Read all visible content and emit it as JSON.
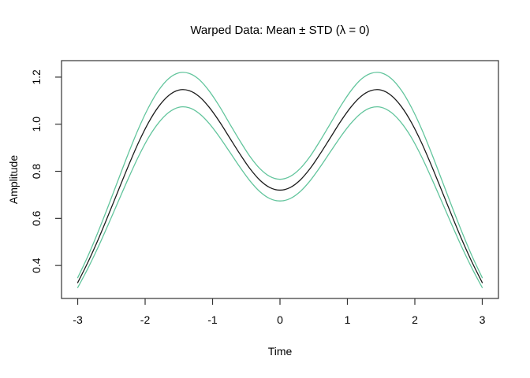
{
  "chart_data": {
    "type": "line",
    "title": "Warped Data: Mean ± STD (λ = 0)",
    "xlabel": "Time",
    "ylabel": "Amplitude",
    "xlim": [
      -3.24,
      3.24
    ],
    "ylim": [
      0.26,
      1.27
    ],
    "grid": false,
    "legend_position": "none",
    "x_ticks": [
      -3,
      -2,
      -1,
      0,
      1,
      2,
      3
    ],
    "x_tick_labels": [
      "-3",
      "-2",
      "-1",
      "0",
      "1",
      "2",
      "3"
    ],
    "y_ticks": [
      0.4,
      0.6,
      0.8,
      1.0,
      1.2
    ],
    "y_tick_labels": [
      "0.4",
      "0.6",
      "0.8",
      "1.0",
      "1.2"
    ],
    "x": [
      -3,
      -2.85,
      -2.7,
      -2.55,
      -2.4,
      -2.25,
      -2.1,
      -1.95,
      -1.8,
      -1.65,
      -1.5,
      -1.35,
      -1.2,
      -1.05,
      -0.9,
      -0.75,
      -0.6,
      -0.45,
      -0.3,
      -0.15,
      0,
      0.15,
      0.3,
      0.45,
      0.6,
      0.75,
      0.9,
      1.05,
      1.2,
      1.35,
      1.5,
      1.65,
      1.8,
      1.95,
      2.1,
      2.25,
      2.4,
      2.55,
      2.7,
      2.85,
      3
    ],
    "series": [
      {
        "name": "mean-plus-std",
        "color": "#63c59d",
        "values": [
          0.348,
          0.439,
          0.541,
          0.65,
          0.763,
          0.875,
          0.98,
          1.071,
          1.144,
          1.194,
          1.218,
          1.216,
          1.19,
          1.141,
          1.077,
          1.004,
          0.932,
          0.865,
          0.812,
          0.778,
          0.766,
          0.778,
          0.812,
          0.865,
          0.932,
          1.004,
          1.077,
          1.141,
          1.19,
          1.216,
          1.218,
          1.194,
          1.144,
          1.071,
          0.98,
          0.875,
          0.763,
          0.65,
          0.541,
          0.439,
          0.348
        ]
      },
      {
        "name": "mean-minus-std",
        "color": "#63c59d",
        "values": [
          0.306,
          0.387,
          0.476,
          0.572,
          0.671,
          0.769,
          0.862,
          0.943,
          1.006,
          1.05,
          1.072,
          1.07,
          1.046,
          1.003,
          0.947,
          0.884,
          0.82,
          0.761,
          0.714,
          0.684,
          0.674,
          0.684,
          0.714,
          0.761,
          0.82,
          0.884,
          0.947,
          1.003,
          1.046,
          1.07,
          1.072,
          1.05,
          1.006,
          0.943,
          0.862,
          0.769,
          0.671,
          0.572,
          0.476,
          0.387,
          0.306
        ]
      },
      {
        "name": "mean",
        "color": "#1c1c1c",
        "values": [
          0.327,
          0.413,
          0.508,
          0.611,
          0.717,
          0.822,
          0.921,
          1.007,
          1.075,
          1.122,
          1.145,
          1.143,
          1.118,
          1.072,
          1.012,
          0.944,
          0.876,
          0.813,
          0.763,
          0.731,
          0.72,
          0.731,
          0.763,
          0.813,
          0.876,
          0.944,
          1.012,
          1.072,
          1.118,
          1.143,
          1.145,
          1.122,
          1.075,
          1.007,
          0.921,
          0.822,
          0.717,
          0.611,
          0.508,
          0.413,
          0.327
        ]
      }
    ],
    "colors": {
      "frame": "#333333",
      "tick": "#333333",
      "text": "#000000",
      "background": "#ffffff"
    }
  }
}
